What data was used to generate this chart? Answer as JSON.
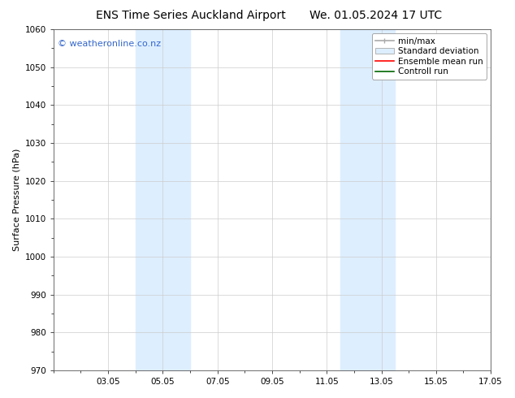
{
  "title_left": "ENS Time Series Auckland Airport",
  "title_right": "We. 01.05.2024 17 UTC",
  "ylabel": "Surface Pressure (hPa)",
  "ylim": [
    970,
    1060
  ],
  "yticks": [
    970,
    980,
    990,
    1000,
    1010,
    1020,
    1030,
    1040,
    1050,
    1060
  ],
  "xlim": [
    0,
    16
  ],
  "xtick_labels": [
    "03.05",
    "05.05",
    "07.05",
    "09.05",
    "11.05",
    "13.05",
    "15.05",
    "17.05"
  ],
  "xtick_positions": [
    2,
    4,
    6,
    8,
    10,
    12,
    14,
    16
  ],
  "shaded_bands": [
    {
      "x_start": 3.0,
      "x_end": 5.0,
      "color": "#ddeeff"
    },
    {
      "x_start": 10.5,
      "x_end": 12.5,
      "color": "#ddeeff"
    }
  ],
  "watermark": "© weatheronline.co.nz",
  "watermark_color": "#3366cc",
  "watermark_fontsize": 8,
  "legend_entries": [
    {
      "label": "min/max",
      "type": "minmax"
    },
    {
      "label": "Standard deviation",
      "type": "patch",
      "color": "#ddeeff"
    },
    {
      "label": "Ensemble mean run",
      "type": "line",
      "color": "#ff0000"
    },
    {
      "label": "Controll run",
      "type": "line",
      "color": "#006600"
    }
  ],
  "bg_color": "#ffffff",
  "plot_bg_color": "#ffffff",
  "grid_color": "#cccccc",
  "title_fontsize": 10,
  "ylabel_fontsize": 8,
  "tick_fontsize": 7.5,
  "legend_fontsize": 7.5
}
